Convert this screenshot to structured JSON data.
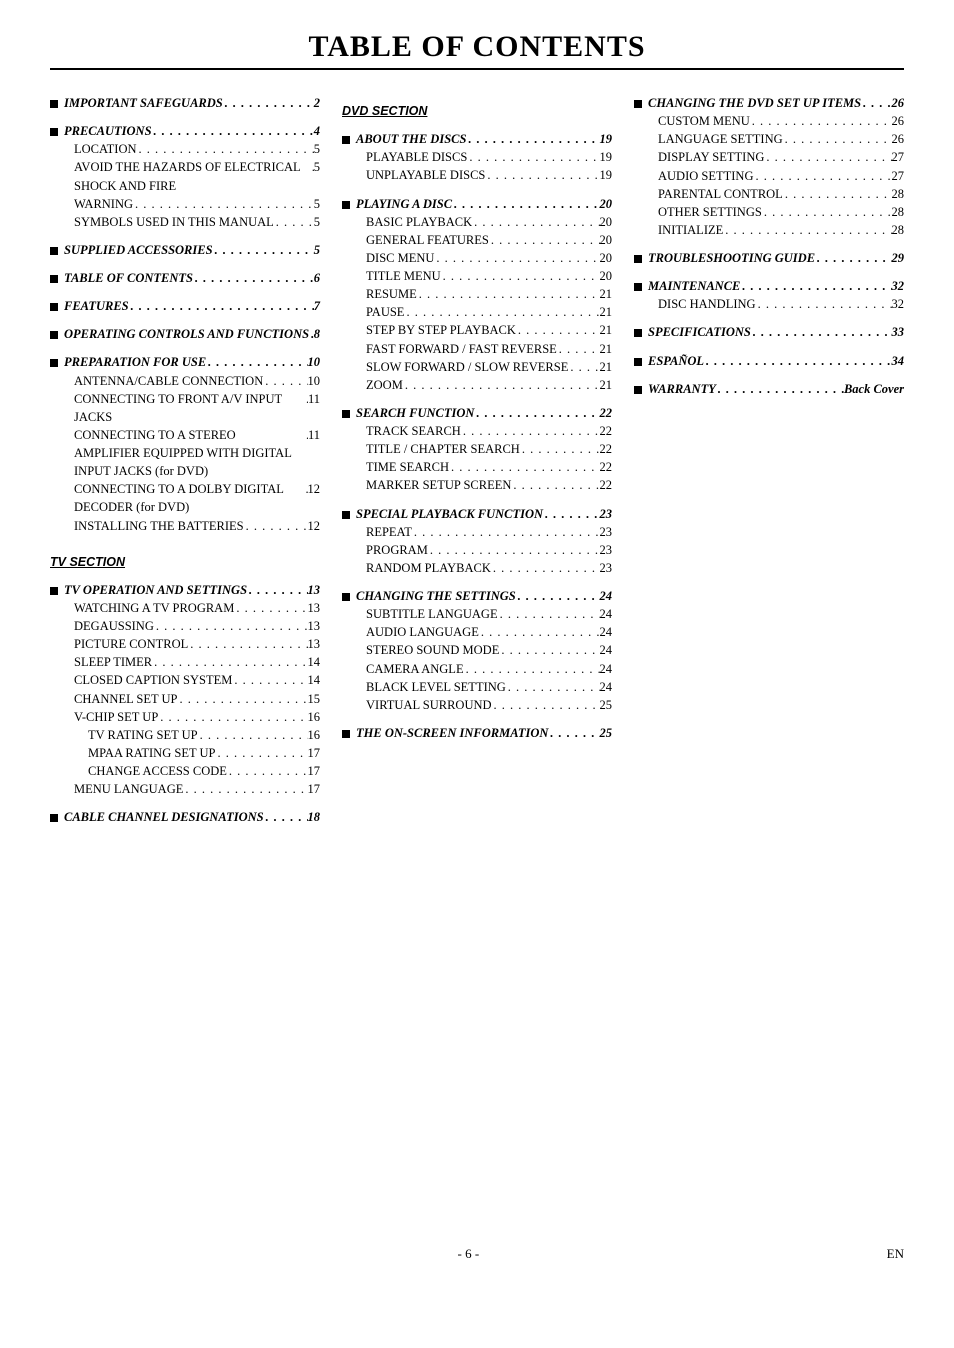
{
  "title": "TABLE OF CONTENTS",
  "footer": {
    "page": "- 6 -",
    "lang": "EN"
  },
  "col1": [
    {
      "type": "heading",
      "label": "IMPORTANT SAFEGUARDS",
      "pg": "2"
    },
    {
      "type": "heading",
      "label": "PRECAUTIONS",
      "pg": "4"
    },
    {
      "type": "entry",
      "label": "LOCATION",
      "pg": "5"
    },
    {
      "type": "entry",
      "label": "AVOID THE HAZARDS OF ELECTRICAL SHOCK AND FIRE",
      "pg": "5",
      "multi": true
    },
    {
      "type": "entry",
      "label": "WARNING",
      "pg": "5"
    },
    {
      "type": "entry",
      "label": "SYMBOLS USED IN THIS MANUAL",
      "pg": "5",
      "multi": true
    },
    {
      "type": "heading",
      "label": "SUPPLIED ACCESSORIES",
      "pg": "5"
    },
    {
      "type": "heading",
      "label": "TABLE OF CONTENTS",
      "pg": "6"
    },
    {
      "type": "heading",
      "label": "FEATURES",
      "pg": "7"
    },
    {
      "type": "heading",
      "label": "OPERATING CONTROLS AND FUNCTIONS",
      "pg": "8",
      "multi": true
    },
    {
      "type": "heading",
      "label": "PREPARATION FOR USE",
      "pg": "10"
    },
    {
      "type": "entry",
      "label": "ANTENNA/CABLE CONNECTION",
      "pg": "10",
      "multi": true
    },
    {
      "type": "entry",
      "label": "CONNECTING TO FRONT A/V INPUT JACKS",
      "pg": "11",
      "multi": true
    },
    {
      "type": "entry",
      "label": "CONNECTING TO A STEREO AMPLIFIER EQUIPPED WITH DIGITAL INPUT JACKS (for DVD)",
      "pg": "11",
      "multi": true
    },
    {
      "type": "entry",
      "label": "CONNECTING TO A DOLBY DIGITAL DECODER (for DVD)",
      "pg": "12",
      "multi": true
    },
    {
      "type": "entry",
      "label": "INSTALLING THE BATTERIES",
      "pg": "12"
    },
    {
      "type": "section",
      "label": "TV SECTION"
    },
    {
      "type": "heading",
      "label": "TV OPERATION AND SETTINGS",
      "pg": "13"
    },
    {
      "type": "entry",
      "label": "WATCHING A TV PROGRAM",
      "pg": "13"
    },
    {
      "type": "entry",
      "label": "DEGAUSSING",
      "pg": "13"
    },
    {
      "type": "entry",
      "label": "PICTURE CONTROL",
      "pg": "13"
    },
    {
      "type": "entry",
      "label": "SLEEP TIMER",
      "pg": "14"
    },
    {
      "type": "entry",
      "label": "CLOSED CAPTION SYSTEM",
      "pg": "14"
    },
    {
      "type": "entry",
      "label": "CHANNEL SET UP",
      "pg": "15"
    },
    {
      "type": "entry",
      "label": "V-CHIP SET UP",
      "pg": "16"
    },
    {
      "type": "sub",
      "label": "TV RATING SET UP",
      "pg": "16"
    },
    {
      "type": "sub",
      "label": "MPAA RATING SET UP",
      "pg": "17"
    },
    {
      "type": "sub",
      "label": "CHANGE ACCESS CODE",
      "pg": "17"
    },
    {
      "type": "entry",
      "label": "MENU LANGUAGE",
      "pg": "17"
    },
    {
      "type": "heading",
      "label": "CABLE CHANNEL DESIGNATIONS",
      "pg": "18",
      "multi": true
    }
  ],
  "col2": [
    {
      "type": "section",
      "label": "DVD SECTION"
    },
    {
      "type": "heading",
      "label": "ABOUT THE DISCS",
      "pg": "19"
    },
    {
      "type": "entry",
      "label": "PLAYABLE DISCS",
      "pg": "19"
    },
    {
      "type": "entry",
      "label": "UNPLAYABLE DISCS",
      "pg": "19"
    },
    {
      "type": "heading",
      "label": "PLAYING A DISC",
      "pg": "20"
    },
    {
      "type": "entry",
      "label": "BASIC PLAYBACK",
      "pg": "20"
    },
    {
      "type": "entry",
      "label": "GENERAL FEATURES",
      "pg": "20"
    },
    {
      "type": "entry",
      "label": "DISC MENU",
      "pg": "20"
    },
    {
      "type": "entry",
      "label": "TITLE MENU",
      "pg": "20"
    },
    {
      "type": "entry",
      "label": "RESUME",
      "pg": "21"
    },
    {
      "type": "entry",
      "label": "PAUSE",
      "pg": "21"
    },
    {
      "type": "entry",
      "label": "STEP BY STEP PLAYBACK",
      "pg": "21"
    },
    {
      "type": "entry",
      "label": "FAST FORWARD / FAST REVERSE",
      "pg": "21",
      "multi": true
    },
    {
      "type": "entry",
      "label": "SLOW FORWARD / SLOW REVERSE",
      "pg": "21",
      "multi": true
    },
    {
      "type": "entry",
      "label": "ZOOM",
      "pg": "21"
    },
    {
      "type": "heading",
      "label": "SEARCH FUNCTION",
      "pg": "22"
    },
    {
      "type": "entry",
      "label": "TRACK SEARCH",
      "pg": "22"
    },
    {
      "type": "entry",
      "label": "TITLE / CHAPTER SEARCH",
      "pg": "22"
    },
    {
      "type": "entry",
      "label": "TIME SEARCH",
      "pg": "22"
    },
    {
      "type": "entry",
      "label": "MARKER SETUP SCREEN",
      "pg": "22"
    },
    {
      "type": "heading",
      "label": "SPECIAL PLAYBACK FUNCTION",
      "pg": "23"
    },
    {
      "type": "entry",
      "label": "REPEAT",
      "pg": "23"
    },
    {
      "type": "entry",
      "label": "PROGRAM",
      "pg": "23"
    },
    {
      "type": "entry",
      "label": "RANDOM PLAYBACK",
      "pg": "23"
    },
    {
      "type": "heading",
      "label": "CHANGING THE SETTINGS",
      "pg": "24"
    },
    {
      "type": "entry",
      "label": "SUBTITLE LANGUAGE",
      "pg": "24"
    },
    {
      "type": "entry",
      "label": "AUDIO LANGUAGE",
      "pg": "24"
    },
    {
      "type": "entry",
      "label": "STEREO SOUND MODE",
      "pg": "24"
    },
    {
      "type": "entry",
      "label": "CAMERA ANGLE",
      "pg": "24"
    },
    {
      "type": "entry",
      "label": "BLACK LEVEL SETTING",
      "pg": "24"
    },
    {
      "type": "entry",
      "label": "VIRTUAL SURROUND",
      "pg": "25"
    },
    {
      "type": "heading",
      "label": "THE ON-SCREEN INFORMATION",
      "pg": "25"
    }
  ],
  "col3": [
    {
      "type": "heading",
      "label": "CHANGING THE DVD SET UP ITEMS",
      "pg": "26",
      "multi": true
    },
    {
      "type": "entry",
      "label": "CUSTOM MENU",
      "pg": "26"
    },
    {
      "type": "entry",
      "label": "LANGUAGE SETTING",
      "pg": "26"
    },
    {
      "type": "entry",
      "label": "DISPLAY SETTING",
      "pg": "27"
    },
    {
      "type": "entry",
      "label": "AUDIO SETTING",
      "pg": "27"
    },
    {
      "type": "entry",
      "label": "PARENTAL CONTROL",
      "pg": "28"
    },
    {
      "type": "entry",
      "label": "OTHER SETTINGS",
      "pg": "28"
    },
    {
      "type": "entry",
      "label": "INITIALIZE",
      "pg": "28"
    },
    {
      "type": "heading",
      "label": "TROUBLESHOOTING GUIDE",
      "pg": "29"
    },
    {
      "type": "heading",
      "label": "MAINTENANCE",
      "pg": "32"
    },
    {
      "type": "entry",
      "label": "DISC HANDLING",
      "pg": "32"
    },
    {
      "type": "heading",
      "label": "SPECIFICATIONS",
      "pg": "33"
    },
    {
      "type": "heading",
      "label": "ESPAÑOL",
      "pg": "34"
    },
    {
      "type": "heading",
      "label": "WARRANTY",
      "pg": "Back Cover"
    }
  ]
}
